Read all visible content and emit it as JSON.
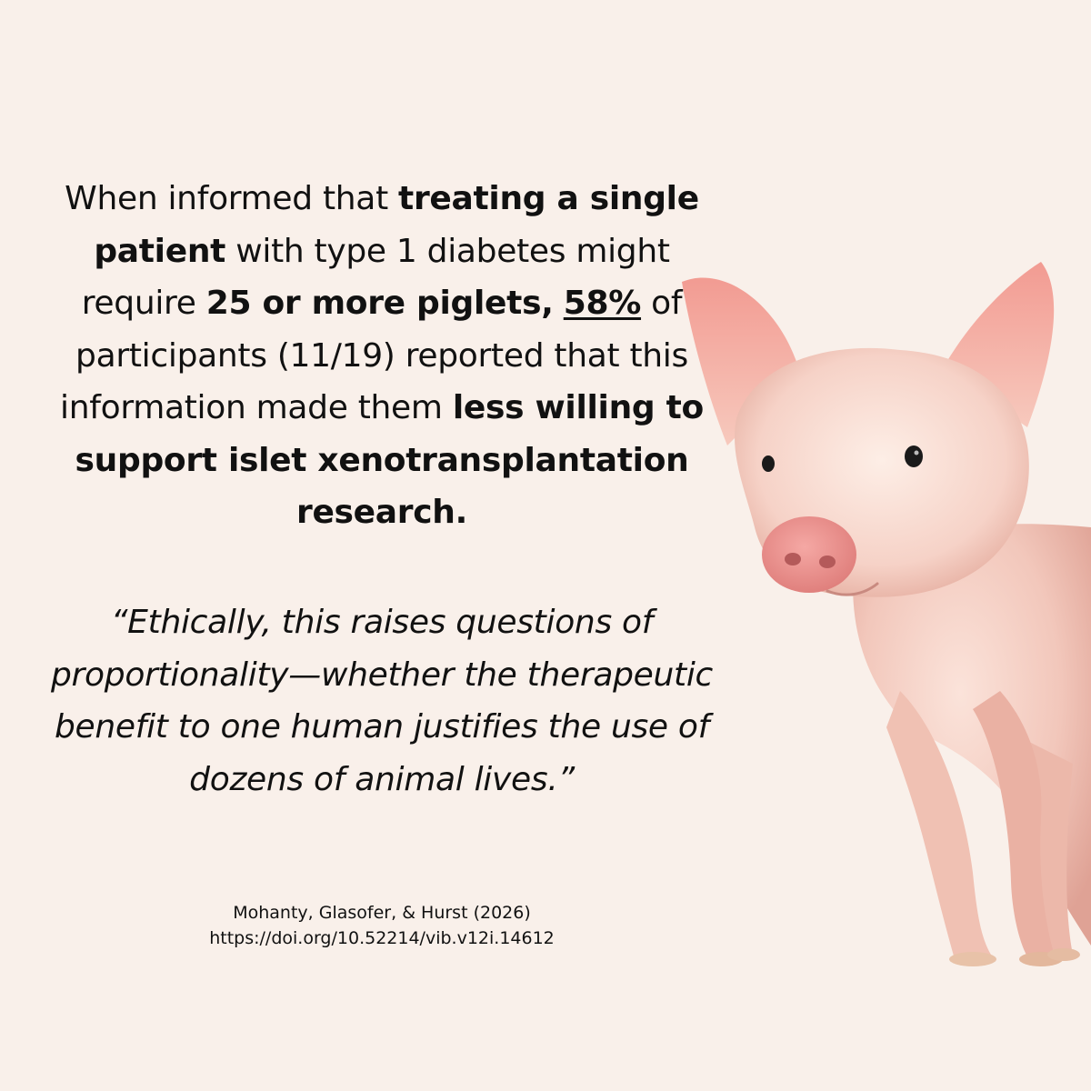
{
  "stat": {
    "t1": "When informed that ",
    "b1": "treating a single patient",
    "t2": " with type 1 diabetes might require ",
    "b2": "25 or more piglets,",
    "t3": " ",
    "u1": "58%",
    "t4": " of participants (11/19) reported that this information made them ",
    "b3": "less willing to support islet xenotransplantation research."
  },
  "quote": "“Ethically, this raises questions of proportionality—whether the therapeutic benefit to one human justifies the use of dozens of animal lives.”",
  "citation": {
    "authors": "Mohanty, Glasofer, & Hurst (2026)",
    "doi": "https://doi.org/10.52214/vib.v12i.14612"
  },
  "image": {
    "subject": "piglet-image"
  },
  "colors": {
    "background": "#f9f0ea",
    "text": "#111111",
    "pig": "#f2c7bd"
  }
}
